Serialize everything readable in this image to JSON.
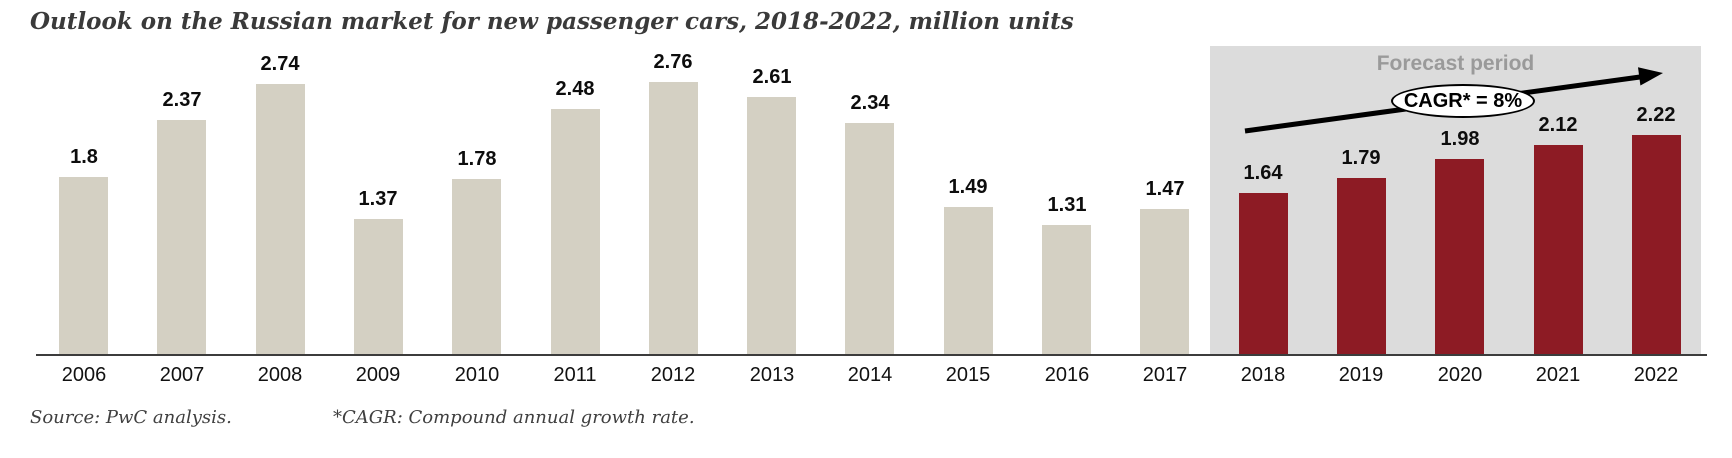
{
  "title": "Outlook on the Russian market for new passenger cars, 2018-2022, million units",
  "forecast": {
    "label": "Forecast period",
    "cagr_label": "CAGR* = 8%"
  },
  "footnotes": {
    "source": "Source: PwC analysis.",
    "cagr": "*CAGR: Compound annual growth rate."
  },
  "colors": {
    "historical_bar": "#d4d0c3",
    "forecast_bar": "#8d1b24",
    "forecast_region": "#dcdcdc",
    "forecast_label": "#9a9a9a",
    "axis": "#3c3c3c",
    "title_text": "#3a3a3a"
  },
  "chart_data": {
    "type": "bar",
    "title": "Outlook on the Russian market for new passenger cars, 2018-2022, million units",
    "xlabel": "",
    "ylabel": "million units",
    "ylim": [
      0,
      3
    ],
    "grid": false,
    "categories": [
      "2006",
      "2007",
      "2008",
      "2009",
      "2010",
      "2011",
      "2012",
      "2013",
      "2014",
      "2015",
      "2016",
      "2017",
      "2018",
      "2019",
      "2020",
      "2021",
      "2022"
    ],
    "values": [
      1.8,
      2.37,
      2.74,
      1.37,
      1.78,
      2.48,
      2.76,
      2.61,
      2.34,
      1.49,
      1.31,
      1.47,
      1.64,
      1.79,
      1.98,
      2.12,
      2.22
    ],
    "forecast_years": [
      "2018",
      "2019",
      "2020",
      "2021",
      "2022"
    ],
    "historical_color": "#d4d0c3",
    "forecast_color": "#8d1b24",
    "annotations": [
      "Forecast period",
      "CAGR* = 8%"
    ]
  }
}
